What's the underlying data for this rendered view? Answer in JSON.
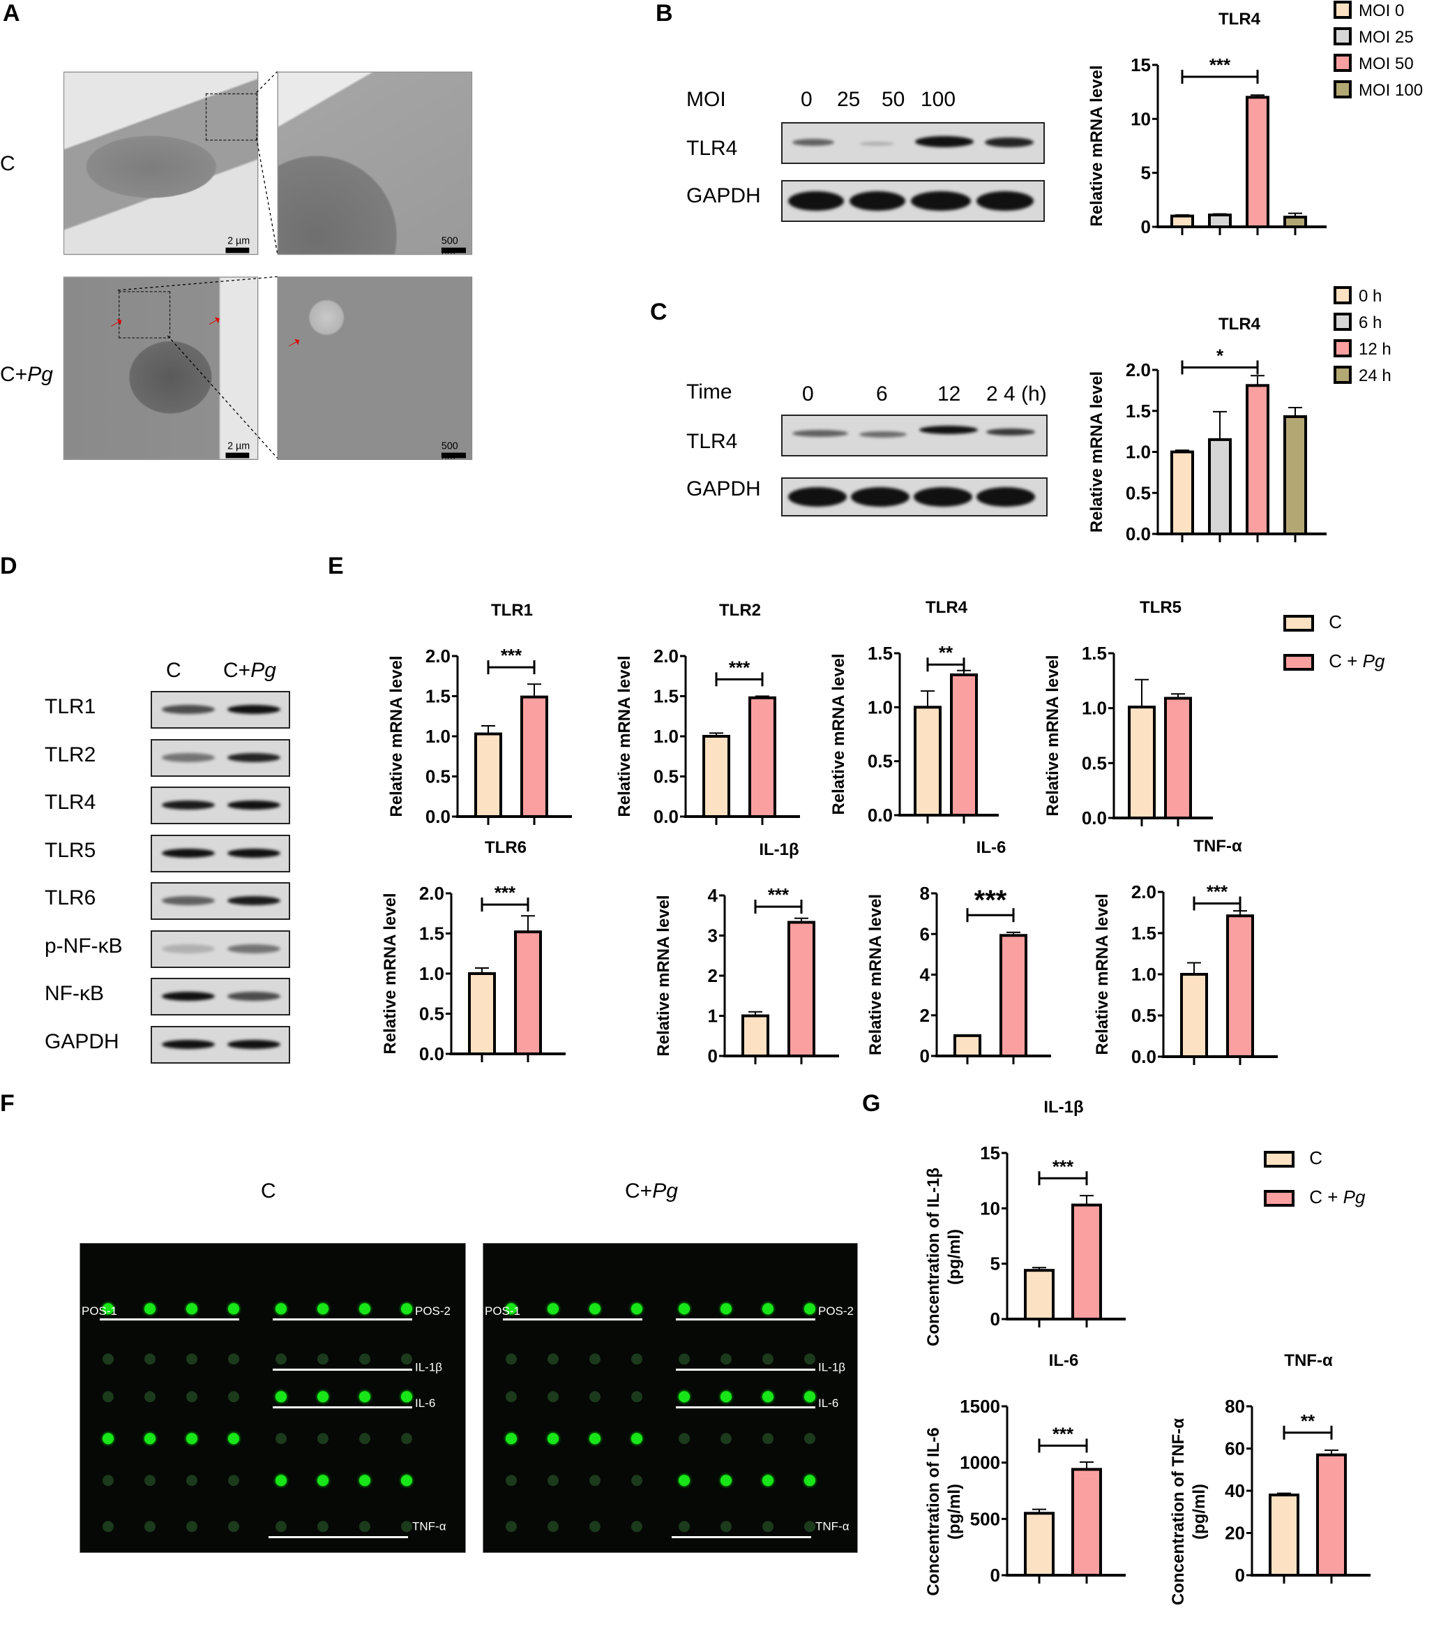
{
  "panels": {
    "A": {
      "label": "A",
      "rows": [
        {
          "label": "C",
          "label_suffix": ""
        },
        {
          "label": "C+",
          "label_suffix": "Pg"
        }
      ],
      "scale_left": "2 µm",
      "scale_right": "500 nm"
    },
    "B": {
      "label": "B",
      "blot": {
        "header_label": "MOI",
        "lanes": [
          "0",
          "25",
          "50",
          "100"
        ],
        "rows": [
          "TLR4",
          "GAPDH"
        ]
      }
    },
    "C": {
      "label": "C",
      "blot": {
        "header_label": "Time",
        "lanes": [
          "0",
          "6",
          "12",
          "2 4 (h)"
        ],
        "rows": [
          "TLR4",
          "GAPDH"
        ]
      }
    },
    "D": {
      "label": "D",
      "lanes": [
        "C",
        "C+"
      ],
      "lane2_suffix": "Pg",
      "rows": [
        "TLR1",
        "TLR2",
        "TLR4",
        "TLR5",
        "TLR6",
        "p-NF-κB",
        "NF-κB",
        "GAPDH"
      ]
    },
    "E": {
      "label": "E",
      "legend": [
        {
          "label": "C",
          "suffix": "",
          "color": "#FDE1C3"
        },
        {
          "label": "C + ",
          "suffix": "Pg",
          "color": "#FBA0A0"
        }
      ]
    },
    "F": {
      "label": "F",
      "titles": [
        {
          "label": "C",
          "suffix": ""
        },
        {
          "label": "C+",
          "suffix": "Pg"
        }
      ],
      "array_labels": [
        "POS-1",
        "POS-2",
        "IL-1β",
        "IL-6",
        "TNF-α"
      ]
    },
    "G": {
      "label": "G",
      "legend": [
        {
          "label": "C",
          "suffix": "",
          "color": "#FDE1C3"
        },
        {
          "label": "C + ",
          "suffix": "Pg",
          "color": "#FBA0A0"
        }
      ]
    }
  },
  "colors": {
    "c": "#FDE1C3",
    "pg": "#FBA0A0",
    "moi0": "#FDE1C3",
    "moi25": "#D6D6D6",
    "moi50": "#FBA0A0",
    "moi100": "#B3A874"
  },
  "chart_data": [
    {
      "id": "B-TLR4",
      "type": "bar",
      "title": "TLR4",
      "ylabel": "Relative mRNA level",
      "categories": [
        "MOI 0",
        "MOI 25",
        "MOI 50",
        "MOI 100"
      ],
      "values": [
        1.0,
        1.1,
        12.0,
        0.9
      ],
      "errors": [
        0.1,
        0.1,
        0.2,
        0.35
      ],
      "colors": [
        "#FDE1C3",
        "#D6D6D6",
        "#FBA0A0",
        "#B3A874"
      ],
      "ylim": [
        0,
        15
      ],
      "yticks": [
        0,
        5,
        10,
        15
      ],
      "ytick_labels": [
        "0",
        "5",
        "10",
        "15"
      ],
      "significance": [
        {
          "from": 0,
          "to": 2,
          "label": "***"
        }
      ],
      "legend": [
        "MOI 0",
        "MOI 25",
        "MOI 50",
        "MOI 100"
      ]
    },
    {
      "id": "C-TLR4",
      "type": "bar",
      "title": "TLR4",
      "ylabel": "Relative mRNA level",
      "categories": [
        "0 h",
        "6 h",
        "12 h",
        "24 h"
      ],
      "values": [
        1.0,
        1.15,
        1.81,
        1.43
      ],
      "errors": [
        0.02,
        0.34,
        0.12,
        0.11
      ],
      "colors": [
        "#FDE1C3",
        "#D6D6D6",
        "#FBA0A0",
        "#B3A874"
      ],
      "ylim": [
        0,
        2.0
      ],
      "yticks": [
        0,
        0.5,
        1.0,
        1.5,
        2.0
      ],
      "ytick_labels": [
        "0.0",
        "0.5",
        "1.0",
        "1.5",
        "2.0"
      ],
      "significance": [
        {
          "from": 0,
          "to": 2,
          "label": "*"
        }
      ],
      "legend": [
        "0 h",
        "6 h",
        "12 h",
        "24 h"
      ]
    },
    {
      "id": "E-TLR1",
      "type": "bar",
      "title": "TLR1",
      "ylabel": "Relative mRNA level",
      "categories": [
        "C",
        "C + Pg"
      ],
      "values": [
        1.03,
        1.49
      ],
      "errors": [
        0.1,
        0.16
      ],
      "ylim": [
        0,
        2.0
      ],
      "yticks": [
        0,
        0.5,
        1.0,
        1.5,
        2.0
      ],
      "ytick_labels": [
        "0.0",
        "0.5",
        "1.0",
        "1.5",
        "2.0"
      ],
      "significance": [
        {
          "from": 0,
          "to": 1,
          "label": "***"
        }
      ]
    },
    {
      "id": "E-TLR2",
      "type": "bar",
      "title": "TLR2",
      "ylabel": "Relative mRNA level",
      "categories": [
        "C",
        "C + Pg"
      ],
      "values": [
        1.0,
        1.48
      ],
      "errors": [
        0.04,
        0.02
      ],
      "ylim": [
        0,
        2.0
      ],
      "yticks": [
        0,
        0.5,
        1.0,
        1.5,
        2.0
      ],
      "ytick_labels": [
        "0.0",
        "0.5",
        "1.0",
        "1.5",
        "2.0"
      ],
      "significance": [
        {
          "from": 0,
          "to": 1,
          "label": "***"
        }
      ]
    },
    {
      "id": "E-TLR4",
      "type": "bar",
      "title": "TLR4",
      "ylabel": "Relative mRNA level",
      "categories": [
        "C",
        "C + Pg"
      ],
      "values": [
        1.0,
        1.3
      ],
      "errors": [
        0.15,
        0.04
      ],
      "ylim": [
        0,
        1.5
      ],
      "yticks": [
        0,
        0.5,
        1.0,
        1.5
      ],
      "ytick_labels": [
        "0.0",
        "0.5",
        "1.0",
        "1.5"
      ],
      "significance": [
        {
          "from": 0,
          "to": 1,
          "label": "**"
        }
      ]
    },
    {
      "id": "E-TLR5",
      "type": "bar",
      "title": "TLR5",
      "ylabel": "Relative mRNA level",
      "categories": [
        "C",
        "C + Pg"
      ],
      "values": [
        1.01,
        1.09
      ],
      "errors": [
        0.25,
        0.04
      ],
      "ylim": [
        0,
        1.5
      ],
      "yticks": [
        0,
        0.5,
        1.0,
        1.5
      ],
      "ytick_labels": [
        "0.0",
        "0.5",
        "1.0",
        "1.5"
      ],
      "significance": []
    },
    {
      "id": "E-TLR6",
      "type": "bar",
      "title": "TLR6",
      "ylabel": "Relative mRNA level",
      "categories": [
        "C",
        "C + Pg"
      ],
      "values": [
        1.0,
        1.52
      ],
      "errors": [
        0.07,
        0.2
      ],
      "ylim": [
        0,
        2.0
      ],
      "yticks": [
        0,
        0.5,
        1.0,
        1.5,
        2.0
      ],
      "ytick_labels": [
        "0.0",
        "0.5",
        "1.0",
        "1.5",
        "2.0"
      ],
      "significance": [
        {
          "from": 0,
          "to": 1,
          "label": "***"
        }
      ]
    },
    {
      "id": "E-IL1b",
      "type": "bar",
      "title": "IL-1β",
      "ylabel": "Relative mRNA level",
      "categories": [
        "C",
        "C + Pg"
      ],
      "values": [
        1.0,
        3.33
      ],
      "errors": [
        0.1,
        0.1
      ],
      "ylim": [
        0,
        4
      ],
      "yticks": [
        0,
        1,
        2,
        3,
        4
      ],
      "ytick_labels": [
        "0",
        "1",
        "2",
        "3",
        "4"
      ],
      "significance": [
        {
          "from": 0,
          "to": 1,
          "label": "***"
        }
      ]
    },
    {
      "id": "E-IL6",
      "type": "bar",
      "title": "IL-6",
      "ylabel": "Relative mRNA level",
      "categories": [
        "C",
        "C + Pg"
      ],
      "values": [
        1.0,
        5.93
      ],
      "errors": [
        0.03,
        0.15
      ],
      "ylim": [
        0,
        8
      ],
      "yticks": [
        0,
        2,
        4,
        6,
        8
      ],
      "ytick_labels": [
        "0",
        "2",
        "4",
        "6",
        "8"
      ],
      "significance": [
        {
          "from": 0,
          "to": 1,
          "label": "***"
        }
      ]
    },
    {
      "id": "E-TNFa",
      "type": "bar",
      "title": "TNF-α",
      "ylabel": "Relative mRNA level",
      "categories": [
        "C",
        "C + Pg"
      ],
      "values": [
        1.0,
        1.71
      ],
      "errors": [
        0.14,
        0.06
      ],
      "ylim": [
        0,
        2.0
      ],
      "yticks": [
        0,
        0.5,
        1.0,
        1.5,
        2.0
      ],
      "ytick_labels": [
        "0.0",
        "0.5",
        "1.0",
        "1.5",
        "2.0"
      ],
      "significance": [
        {
          "from": 0,
          "to": 1,
          "label": "***"
        }
      ]
    },
    {
      "id": "G-IL1b",
      "type": "bar",
      "title": "IL-1β",
      "ylabel": "Concentration of IL-1β (pg/ml)",
      "categories": [
        "C",
        "C + Pg"
      ],
      "values": [
        4.4,
        10.3
      ],
      "errors": [
        0.25,
        0.85
      ],
      "ylim": [
        0,
        15
      ],
      "yticks": [
        0,
        5,
        10,
        15
      ],
      "ytick_labels": [
        "0",
        "5",
        "10",
        "15"
      ],
      "significance": [
        {
          "from": 0,
          "to": 1,
          "label": "***"
        }
      ]
    },
    {
      "id": "G-IL6",
      "type": "bar",
      "title": "IL-6",
      "ylabel": "Concentration of IL-6 (pg/ml)",
      "categories": [
        "C",
        "C + Pg"
      ],
      "values": [
        550,
        940
      ],
      "errors": [
        35,
        65
      ],
      "ylim": [
        0,
        1500
      ],
      "yticks": [
        0,
        500,
        1000,
        1500
      ],
      "ytick_labels": [
        "0",
        "500",
        "1000",
        "1500"
      ],
      "significance": [
        {
          "from": 0,
          "to": 1,
          "label": "***"
        }
      ]
    },
    {
      "id": "G-TNFa",
      "type": "bar",
      "title": "TNF-α",
      "ylabel": "Concentration of TNF-α (pg/ml)",
      "categories": [
        "C",
        "C + Pg"
      ],
      "values": [
        38,
        57
      ],
      "errors": [
        0.8,
        2.2
      ],
      "ylim": [
        0,
        80
      ],
      "yticks": [
        0,
        20,
        40,
        60,
        80
      ],
      "ytick_labels": [
        "0",
        "20",
        "40",
        "60",
        "80"
      ],
      "significance": [
        {
          "from": 0,
          "to": 1,
          "label": "**"
        }
      ]
    }
  ]
}
